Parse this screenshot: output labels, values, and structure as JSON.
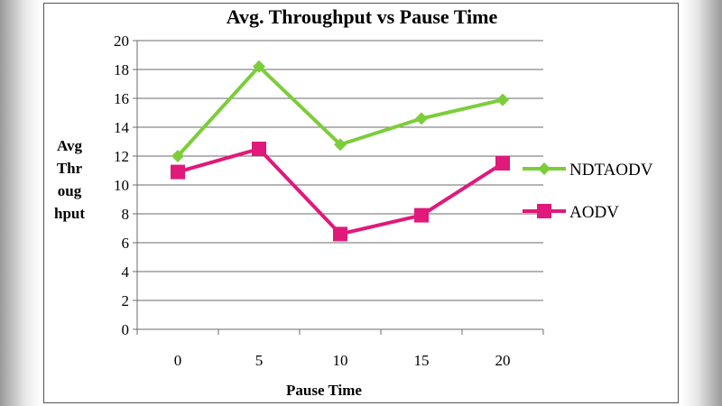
{
  "chart_data": {
    "type": "line",
    "title": "Avg. Throughput vs Pause Time",
    "xlabel": "Pause Time",
    "ylabel_lines": [
      "Avg",
      "Thr",
      "oug",
      "hput"
    ],
    "categories": [
      "0",
      "5",
      "10",
      "15",
      "20"
    ],
    "ylim": [
      0,
      20
    ],
    "yticks": [
      0,
      2,
      4,
      6,
      8,
      10,
      12,
      14,
      16,
      18,
      20
    ],
    "grid": true,
    "legend_position": "right",
    "series": [
      {
        "name": "NDTAODV",
        "values": [
          12,
          18.2,
          12.8,
          14.6,
          15.9
        ],
        "color": "#7ccd3a",
        "marker": "diamond"
      },
      {
        "name": "AODV",
        "values": [
          10.9,
          12.5,
          6.6,
          7.9,
          11.5
        ],
        "color": "#e0197a",
        "marker": "square"
      }
    ]
  }
}
